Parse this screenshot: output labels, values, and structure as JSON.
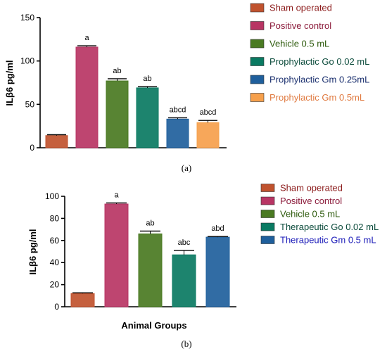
{
  "chart_data": [
    {
      "type": "bar",
      "panel_label": "(a)",
      "ylabel": "ILβ6 pg/ml",
      "xlabel": "",
      "ylim": [
        0,
        150
      ],
      "yticks": [
        "0",
        "50",
        "100",
        "150"
      ],
      "categories": [
        "Sham operated",
        "Positive control",
        "Vehicle 0.5 mL",
        "Prophylactic Go 0.02 mL",
        "Prophylactic Gm 0.25mL",
        "Prophylactic Gm 0.5mL"
      ],
      "values": [
        14,
        116,
        77,
        69,
        33,
        29
      ],
      "errors": [
        1,
        1.5,
        2.5,
        1.5,
        1.5,
        2.5
      ],
      "significance": [
        "",
        "a",
        "ab",
        "ab",
        "abcd",
        "abcd"
      ],
      "colors": [
        "#c0522e",
        "#b83564",
        "#4a7a22",
        "#0a7a62",
        "#1f5f9c",
        "#f6a04c"
      ],
      "legend_text_colors": [
        "#8b1a1a",
        "#8b1a3a",
        "#2d5a0c",
        "#0a4a3a",
        "#1a2f6e",
        "#e07a40"
      ],
      "legend_position": "right"
    },
    {
      "type": "bar",
      "panel_label": "(b)",
      "ylabel": "ILβ6 pg/ml",
      "xlabel": "Animal Groups",
      "ylim": [
        0,
        100
      ],
      "yticks": [
        "0",
        "20",
        "40",
        "60",
        "80",
        "100"
      ],
      "categories": [
        "Sham operated",
        "Positive control",
        "Vehicle 0.5 mL",
        "Therapeutic Go 0.02 mL",
        "Therapeutic Gm 0.5 mL"
      ],
      "values": [
        12,
        93,
        66,
        47,
        63
      ],
      "errors": [
        0.6,
        1,
        2.5,
        4,
        0.6
      ],
      "significance": [
        "",
        "a",
        "ab",
        "abc",
        "abd"
      ],
      "colors": [
        "#c0522e",
        "#b83564",
        "#4a7a22",
        "#0a7a62",
        "#1f5f9c"
      ],
      "legend_text_colors": [
        "#8b1a1a",
        "#8b1a3a",
        "#2d5a0c",
        "#0a4a3a",
        "#1a1ab8"
      ],
      "legend_position": "right"
    }
  ]
}
